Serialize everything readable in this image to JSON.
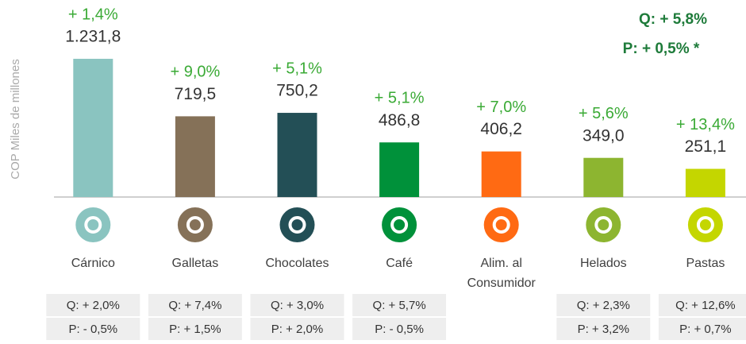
{
  "chart_data": {
    "type": "bar",
    "y_label": "COP Miles de millones",
    "categories": [
      "Cárnico",
      "Galletas",
      "Chocolates",
      "Café",
      "Alim. al Consumidor",
      "Helados",
      "Pastas"
    ],
    "values": [
      1231.8,
      719.5,
      750.2,
      486.8,
      406.2,
      349.0,
      251.1
    ],
    "value_labels": [
      "1.231,8",
      "719,5",
      "750,2",
      "486,8",
      "406,2",
      "349,0",
      "251,1"
    ],
    "growth_labels": [
      "+ 1,4%",
      "+ 9,0%",
      "+ 5,1%",
      "+ 5,1%",
      "+ 7,0%",
      "+ 5,6%",
      "+ 13,4%"
    ],
    "colors": [
      "#8ac4c0",
      "#857158",
      "#234f56",
      "#00913a",
      "#ff6a13",
      "#8db530",
      "#c4d600"
    ],
    "q_labels": [
      "Q: + 2,0%",
      "Q: + 7,4%",
      "Q: + 3,0%",
      "Q: + 5,7%",
      null,
      "Q: + 2,3%",
      "Q: + 12,6%"
    ],
    "p_labels": [
      "P: - 0,5%",
      "P: + 1,5%",
      "P: + 2,0%",
      "P: - 0,5%",
      null,
      "P: + 3,2%",
      "P: + 0,7%"
    ],
    "total_q": "Q: + 5,8%",
    "total_p": "P: + 0,5% *",
    "ylim": [
      0,
      1300
    ]
  }
}
